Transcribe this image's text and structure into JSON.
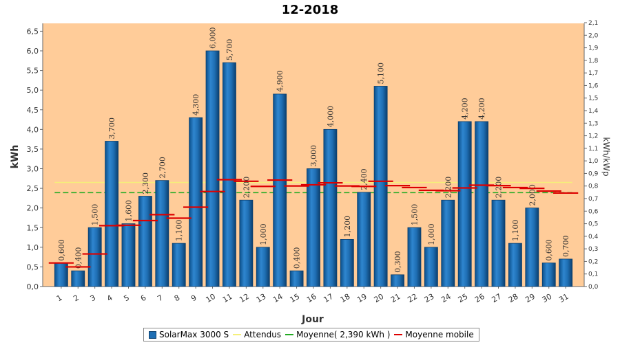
{
  "chart_data": {
    "type": "bar",
    "title": "12-2018",
    "xlabel": "Jour",
    "ylabel": "kWh",
    "y2label": "kWh/kWp",
    "ylim": [
      0,
      6.7
    ],
    "y2lim": [
      0,
      2.1
    ],
    "yticks": [
      "0,0",
      "0,5",
      "1,0",
      "1,5",
      "2,0",
      "2,5",
      "3,0",
      "3,5",
      "4,0",
      "4,5",
      "5,0",
      "5,5",
      "6,0",
      "6,5"
    ],
    "y2ticks": [
      "0,0",
      "0,1",
      "0,2",
      "0,3",
      "0,4",
      "0,5",
      "0,6",
      "0,7",
      "0,8",
      "0,9",
      "1,0",
      "1,1",
      "1,2",
      "1,3",
      "1,4",
      "1,5",
      "1,6",
      "1,7",
      "1,8",
      "1,9",
      "2,0",
      "2,1"
    ],
    "categories": [
      "1",
      "2",
      "3",
      "4",
      "5",
      "6",
      "7",
      "8",
      "9",
      "10",
      "11",
      "12",
      "13",
      "14",
      "15",
      "16",
      "17",
      "18",
      "19",
      "20",
      "21",
      "22",
      "23",
      "24",
      "25",
      "26",
      "27",
      "28",
      "29",
      "30",
      "31"
    ],
    "series": [
      {
        "name": "SolarMax 3000 S",
        "kind": "bar",
        "color": "#1f6fb4",
        "values": [
          0.6,
          0.4,
          1.5,
          3.7,
          1.6,
          2.3,
          2.7,
          1.1,
          4.3,
          6.0,
          5.7,
          2.2,
          1.0,
          4.9,
          0.4,
          3.0,
          4.0,
          1.2,
          2.4,
          5.1,
          0.3,
          1.5,
          1.0,
          2.2,
          4.2,
          4.2,
          2.2,
          1.1,
          2.0,
          0.6,
          0.7
        ],
        "labels": [
          "0,600",
          "0,400",
          "1,500",
          "3,700",
          "1,600",
          "2,300",
          "2,700",
          "1,100",
          "4,300",
          "6,000",
          "5,700",
          "2,200",
          "1,000",
          "4,900",
          "0,400",
          "3,000",
          "4,000",
          "1,200",
          "2,400",
          "5,100",
          "0,300",
          "1,500",
          "1,000",
          "2,200",
          "4,200",
          "4,200",
          "2,200",
          "1,100",
          "2,000",
          "0,600",
          "0,700"
        ]
      },
      {
        "name": "Attendus",
        "kind": "line",
        "color": "#ffff66",
        "values": [
          2.65,
          2.65,
          2.65,
          2.65,
          2.65,
          2.65,
          2.65,
          2.65,
          2.65,
          2.65,
          2.65,
          2.65,
          2.65,
          2.65,
          2.65,
          2.65,
          2.65,
          2.65,
          2.65,
          2.65,
          2.65,
          2.65,
          2.65,
          2.65,
          2.65,
          2.65,
          2.65,
          2.65,
          2.65,
          2.65,
          2.65
        ]
      },
      {
        "name": "Moyenne( 2,390 kWh )",
        "kind": "dashed-line",
        "color": "#22aa22",
        "values": [
          2.39,
          2.39,
          2.39,
          2.39,
          2.39,
          2.39,
          2.39,
          2.39,
          2.39,
          2.39,
          2.39,
          2.39,
          2.39,
          2.39,
          2.39,
          2.39,
          2.39,
          2.39,
          2.39,
          2.39,
          2.39,
          2.39,
          2.39,
          2.39,
          2.39,
          2.39,
          2.39,
          2.39,
          2.39,
          2.39,
          2.39
        ]
      },
      {
        "name": "Moyenne mobile",
        "kind": "marker",
        "color": "#dd0000",
        "values": [
          0.6,
          0.5,
          0.83,
          1.55,
          1.56,
          1.68,
          1.83,
          1.74,
          2.02,
          2.42,
          2.72,
          2.68,
          2.55,
          2.71,
          2.56,
          2.59,
          2.64,
          2.56,
          2.55,
          2.68,
          2.57,
          2.52,
          2.45,
          2.44,
          2.51,
          2.58,
          2.57,
          2.52,
          2.5,
          2.43,
          2.38
        ]
      }
    ],
    "grid": false,
    "legend_position": "bottom",
    "colors": {
      "plot_background": "#ffcc99",
      "bar": "#1f6fb4",
      "bar_edge": "#0b3f6e",
      "expected": "#ffff66",
      "average": "#22aa22",
      "moving_average": "#dd0000"
    }
  }
}
